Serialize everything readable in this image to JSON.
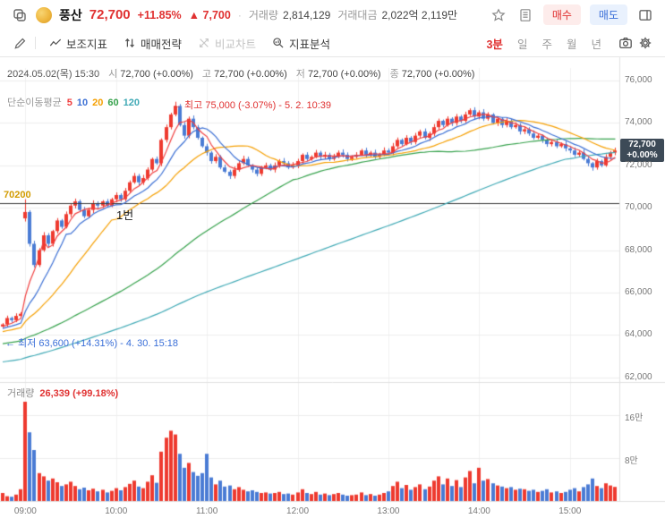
{
  "header": {
    "stock_name": "풍산",
    "price": "72,700",
    "change_pct": "+11.85%",
    "change_amt": "▲ 7,700",
    "sep": "·",
    "volume_label": "거래량",
    "volume_value": "2,814,129",
    "value_label": "거래대금",
    "value_value": "2,022억 2,119만",
    "buy_label": "매수",
    "sell_label": "매도"
  },
  "toolbar": {
    "items": [
      {
        "label": "보조지표"
      },
      {
        "label": "매매전략"
      },
      {
        "label": "비교차트"
      },
      {
        "label": "지표분석"
      }
    ],
    "timeframes": [
      "3분",
      "일",
      "주",
      "월",
      "년"
    ],
    "active_timeframe": "3분"
  },
  "info": {
    "date": "2024.05.02(목) 15:30",
    "items": [
      {
        "label": "시",
        "value": "72,700 (+0.00%)"
      },
      {
        "label": "고",
        "value": "72,700 (+0.00%)"
      },
      {
        "label": "저",
        "value": "72,700 (+0.00%)"
      },
      {
        "label": "종",
        "value": "72,700 (+0.00%)"
      }
    ]
  },
  "legend": {
    "title": "단순이동평균",
    "periods": [
      "5",
      "10",
      "20",
      "60",
      "120"
    ]
  },
  "annotations": {
    "high": "← 최고 75,000 (-3.07%) - 5. 2. 10:39",
    "low": "← 최저 63,600 (+14.31%) - 4. 30. 15:18",
    "note": "1번",
    "hline_label": "70200"
  },
  "volume_pane": {
    "label": "거래량",
    "value": "26,339 (+99.18%)"
  },
  "price_badge": {
    "price": "72,700",
    "change": "+0.00%"
  },
  "chart_data": {
    "type": "candlestick",
    "interval": "3min",
    "last_price": 72700,
    "hline": 70200,
    "first_open": 64400,
    "price_axis": {
      "min": 62000,
      "max": 76000,
      "step": 2000
    },
    "y_ticks": [
      {
        "label": "76,000",
        "price": 76000
      },
      {
        "label": "74,000",
        "price": 74000
      },
      {
        "label": "72,000",
        "price": 72000
      },
      {
        "label": "70,000",
        "price": 70000
      },
      {
        "label": "68,000",
        "price": 68000
      },
      {
        "label": "66,000",
        "price": 66000
      },
      {
        "label": "64,000",
        "price": 64000
      },
      {
        "label": "62,000",
        "price": 62000
      }
    ],
    "x_ticks": [
      {
        "label": "09:00",
        "bar": 5
      },
      {
        "label": "10:00",
        "bar": 25
      },
      {
        "label": "11:00",
        "bar": 45
      },
      {
        "label": "12:00",
        "bar": 65
      },
      {
        "label": "13:00",
        "bar": 85
      },
      {
        "label": "14:00",
        "bar": 105
      },
      {
        "label": "15:00",
        "bar": 125
      }
    ],
    "vol_ticks": [
      {
        "label": "16만",
        "value": 160000
      },
      {
        "label": "8만",
        "value": 80000
      }
    ],
    "ma_periods": [
      5,
      10,
      20,
      60,
      120
    ],
    "warmup": {
      "start": 61000,
      "end": 64400,
      "count": 120
    },
    "open_overrides": {
      "5": 69500
    },
    "high_overrides": {
      "5": 70400,
      "38": 75000
    },
    "low_overrides": {
      "130": 71750
    },
    "colors": {
      "up": "#ee3a2f",
      "down": "#4a7bd4",
      "ma": [
        "#f03e3e",
        "#3b6fd4",
        "#f59f00",
        "#37a24d",
        "#3fa9b5"
      ],
      "grid": "#ececec",
      "frame": "#e2e2e2",
      "hline": "#3a3a3a",
      "badge": "#3d4a57"
    },
    "closes": [
      64500,
      64800,
      64700,
      64900,
      65000,
      69800,
      68300,
      67300,
      68000,
      68700,
      68300,
      68900,
      69400,
      69100,
      69700,
      70100,
      70300,
      69900,
      69600,
      69900,
      70200,
      70100,
      70300,
      70100,
      70400,
      70600,
      70400,
      70800,
      71200,
      71500,
      71200,
      71400,
      71800,
      72300,
      72100,
      73200,
      73800,
      74400,
      74800,
      73900,
      73400,
      74200,
      73800,
      73300,
      72900,
      72600,
      72200,
      72400,
      71900,
      71700,
      71500,
      71800,
      72100,
      72300,
      72000,
      71800,
      71600,
      71900,
      72000,
      71800,
      72000,
      72200,
      72100,
      71900,
      72000,
      72200,
      72500,
      72300,
      72400,
      72600,
      72400,
      72500,
      72300,
      72400,
      72600,
      72500,
      72300,
      72400,
      72500,
      72700,
      72500,
      72600,
      72400,
      72500,
      72700,
      72600,
      72900,
      73200,
      73000,
      73300,
      73100,
      73400,
      73600,
      73300,
      73500,
      73800,
      74100,
      73900,
      74200,
      74000,
      74300,
      74100,
      74400,
      74600,
      74300,
      74500,
      74200,
      74400,
      74000,
      74200,
      73900,
      74100,
      73800,
      73900,
      73600,
      73700,
      73500,
      73300,
      73400,
      73200,
      73000,
      73100,
      72900,
      73000,
      72800,
      72700,
      72500,
      72600,
      72300,
      72100,
      71900,
      72200,
      72000,
      72400,
      72600,
      72700
    ],
    "volumes": [
      15000,
      9000,
      8000,
      12000,
      22000,
      185000,
      128000,
      95000,
      52000,
      46000,
      38000,
      42000,
      35000,
      28000,
      31000,
      36000,
      28000,
      22000,
      25000,
      20000,
      23000,
      18000,
      21000,
      16000,
      19000,
      24000,
      20000,
      26000,
      32000,
      38000,
      27000,
      24000,
      36000,
      48000,
      34000,
      92000,
      118000,
      131000,
      124000,
      88000,
      62000,
      71000,
      54000,
      47000,
      52000,
      88000,
      44000,
      31000,
      38000,
      27000,
      29000,
      22000,
      26000,
      21000,
      18000,
      20000,
      17000,
      15000,
      16000,
      14000,
      15000,
      17000,
      13000,
      14000,
      12000,
      16000,
      22000,
      15000,
      13000,
      17000,
      12000,
      14000,
      11000,
      13000,
      15000,
      12000,
      10000,
      11000,
      12000,
      16000,
      11000,
      13000,
      10000,
      12000,
      15000,
      18000,
      28000,
      36000,
      24000,
      30000,
      21000,
      26000,
      31000,
      22000,
      27000,
      38000,
      46000,
      31000,
      42000,
      28000,
      39000,
      26000,
      44000,
      56000,
      33000,
      62000,
      38000,
      41000,
      33000,
      29000,
      27000,
      24000,
      26000,
      21000,
      23000,
      22000,
      19000,
      21000,
      17000,
      19000,
      22000,
      16000,
      18000,
      15000,
      17000,
      21000,
      24000,
      18000,
      26000,
      31000,
      42000,
      28000,
      24000,
      33000,
      29000,
      26339
    ]
  }
}
